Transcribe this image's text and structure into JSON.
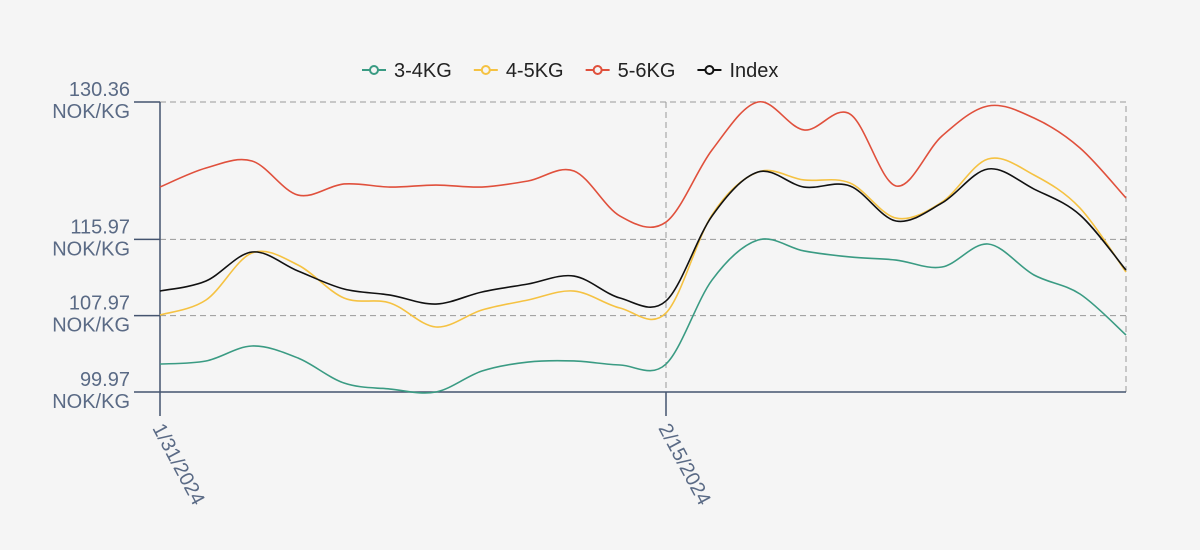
{
  "chart_data": {
    "type": "line",
    "categories": [
      "1/31/2024",
      null,
      null,
      null,
      null,
      null,
      null,
      null,
      null,
      null,
      null,
      "2/15/2024",
      null,
      null,
      null,
      null,
      null,
      null,
      null,
      null,
      null,
      null
    ],
    "series": [
      {
        "name": "3-4KG",
        "color": "#3a9b83",
        "values": [
          102.9,
          103.22,
          104.79,
          103.53,
          100.91,
          100.28,
          99.97,
          102.17,
          103.11,
          103.22,
          102.8,
          102.9,
          111.7,
          115.9,
          114.75,
          114.12,
          113.8,
          113.07,
          115.48,
          112.23,
          110.24,
          105.94
        ]
      },
      {
        "name": "4-5KG",
        "color": "#f5c242",
        "values": [
          108.04,
          109.61,
          114.54,
          113.28,
          109.82,
          109.3,
          106.78,
          108.56,
          109.61,
          110.55,
          108.77,
          108.25,
          118.52,
          123.02,
          122.19,
          121.87,
          118.2,
          119.88,
          124.39,
          122.71,
          119.25,
          112.54
        ]
      },
      {
        "name": "5-6KG",
        "color": "#e0503c",
        "values": [
          121.45,
          123.44,
          124.18,
          120.61,
          121.77,
          121.45,
          121.66,
          121.45,
          122.08,
          123.13,
          118.41,
          117.78,
          125.33,
          130.36,
          127.43,
          129.1,
          121.56,
          126.8,
          129.94,
          128.68,
          125.54,
          120.3
        ]
      },
      {
        "name": "Index",
        "color": "#111111",
        "values": [
          110.55,
          111.6,
          114.64,
          112.65,
          110.76,
          110.13,
          109.19,
          110.45,
          111.29,
          112.12,
          109.82,
          109.51,
          118.41,
          123.02,
          121.45,
          121.56,
          117.89,
          119.78,
          123.34,
          121.24,
          118.52,
          112.75
        ]
      }
    ],
    "ylim": [
      99.97,
      130.36
    ],
    "yticks": [
      {
        "value": 99.97,
        "label": "99.97 NOK/KG"
      },
      {
        "value": 107.97,
        "label": "107.97 NOK/KG"
      },
      {
        "value": 115.97,
        "label": "115.97 NOK/KG"
      },
      {
        "value": 130.36,
        "label": "130.36 NOK/KG"
      }
    ],
    "grid": true,
    "legend": "top"
  }
}
